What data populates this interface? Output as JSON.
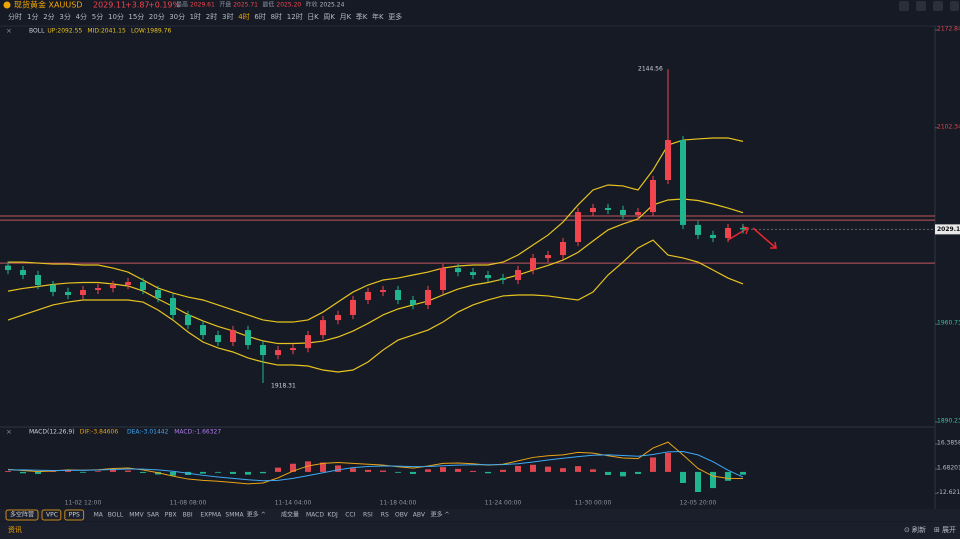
{
  "header": {
    "symbol": "现货黄金 XAUUSD",
    "price": "2029.11",
    "change": "+3.87",
    "change_pct": "+0.19%",
    "stats": [
      {
        "label": "最高",
        "value": "2029.61"
      },
      {
        "label": "开盘",
        "value": "2025.71"
      },
      {
        "label": "最低",
        "value": "2025.20"
      },
      {
        "label": "昨收",
        "value": "2025.24"
      }
    ]
  },
  "toolbar": {
    "timeframes": [
      "分时",
      "1分",
      "2分",
      "3分",
      "4分",
      "5分",
      "10分",
      "15分",
      "20分",
      "30分",
      "1时",
      "2时",
      "3时",
      "4时",
      "6时",
      "8时",
      "12时",
      "日K",
      "周K",
      "月K",
      "季K",
      "年K",
      "更多"
    ],
    "active": "4时"
  },
  "chart_data": [
    {
      "type": "candlestick",
      "indicator": "BOLL",
      "legend_texts": [
        "UP:2092.55",
        "MID:2041.15",
        "LOW:1989.76"
      ],
      "categories": [
        null,
        null,
        null,
        null,
        null,
        "11-02 12:00",
        null,
        null,
        null,
        null,
        null,
        null,
        "11-08 08:00",
        null,
        null,
        null,
        null,
        null,
        null,
        "11-14 04:00",
        null,
        null,
        null,
        null,
        null,
        null,
        "11-18 04:00",
        null,
        null,
        null,
        null,
        null,
        null,
        "11-24 00:00",
        null,
        null,
        null,
        null,
        null,
        "11-30 00:00",
        null,
        null,
        null,
        null,
        null,
        null,
        "12-05 20:00",
        null,
        null,
        null
      ],
      "open": [
        2003,
        1999.8,
        1996.2,
        1989,
        1984,
        1981.8,
        1985.4,
        1986.8,
        1989,
        1991.1,
        1985.4,
        1979.6,
        1967.4,
        1960.1,
        1952.9,
        1947.9,
        1956.5,
        1945.7,
        1938.5,
        1942.1,
        1943.5,
        1952.9,
        1963.7,
        1967.4,
        1978.2,
        1984,
        1985.4,
        1978.2,
        1974.6,
        1985.4,
        2001.2,
        1998.3,
        1996.2,
        1994,
        1992.6,
        1999.8,
        2008.4,
        2010.6,
        2020,
        2041.6,
        2044.5,
        2043.1,
        2039.5,
        2041.6,
        2064.7,
        2093.5,
        2032.3,
        2025.1,
        2022.9,
        2030.1
      ],
      "high": [
        2006,
        2002.8,
        1999.2,
        1992,
        1987,
        1988.4,
        1989.8,
        1992,
        1994.1,
        1994.1,
        1988.4,
        1982.6,
        1970.4,
        1963.1,
        1955.9,
        1959.5,
        1959.5,
        1948.7,
        1945.1,
        1946.5,
        1955.9,
        1966.7,
        1970.4,
        1981.2,
        1987,
        1988.4,
        1988.4,
        1981.2,
        1988.4,
        2004.2,
        2004.2,
        2001.3,
        1999.2,
        1997,
        2002.8,
        2011.4,
        2013.6,
        2023,
        2044.6,
        2047.5,
        2047.5,
        2046.1,
        2044.6,
        2067.7,
        2144.56,
        2096.5,
        2035.3,
        2028.1,
        2033.1,
        2033.1
      ],
      "low": [
        1996.8,
        1993.2,
        1986,
        1981,
        1978.8,
        1978.8,
        1982.4,
        1983.8,
        1986,
        1982.4,
        1976.6,
        1964.4,
        1957.1,
        1949.9,
        1944.9,
        1944.9,
        1942.7,
        1918.31,
        1935.5,
        1939.1,
        1940.5,
        1949.9,
        1960.7,
        1964.4,
        1975.2,
        1981,
        1975.2,
        1971.6,
        1971.6,
        1982.4,
        1995.3,
        1993.2,
        1991,
        1989.6,
        1989.6,
        1996.8,
        2005.4,
        2007.6,
        2017,
        2038.6,
        2040.1,
        2036.5,
        2036.5,
        2038.6,
        2061.7,
        2029.3,
        2022.1,
        2019.9,
        2019.9,
        2026.1
      ],
      "close": [
        1999.8,
        1996.2,
        1989,
        1984,
        1981.8,
        1985.4,
        1986.8,
        1989,
        1991.1,
        1985.4,
        1979.6,
        1967.4,
        1960.1,
        1952.9,
        1947.9,
        1956.5,
        1945.7,
        1938.5,
        1942.1,
        1943.5,
        1952.9,
        1963.7,
        1967.4,
        1978.2,
        1984,
        1985.4,
        1978.2,
        1974.6,
        1985.4,
        2001.2,
        1998.3,
        1996.2,
        1994,
        1992.6,
        1999.8,
        2008.4,
        2010.6,
        2020,
        2041.6,
        2044.5,
        2043.1,
        2039.5,
        2041.6,
        2064.7,
        2093.5,
        2032.3,
        2025.1,
        2022.9,
        2030.1,
        2029.11
      ],
      "up_color": "#f0454f",
      "down_color": "#1fb58f",
      "overlays": [
        {
          "color": "#e8c320",
          "values": [
            2005.5,
            2005.5,
            2004.8,
            2004.1,
            2004.1,
            2003.4,
            2003.4,
            2001.2,
            1998.3,
            1992.6,
            1986.8,
            1983.2,
            1980.3,
            1978.2,
            1974.6,
            1971,
            1967.4,
            1963.8,
            1962.3,
            1962.3,
            1963.8,
            1969.5,
            1976.7,
            1983.9,
            1989,
            1992.6,
            1994,
            1996.2,
            1998.3,
            2001.2,
            2002.7,
            2003.4,
            2003.4,
            2005.5,
            2010.6,
            2017.8,
            2025,
            2034.4,
            2046.7,
            2057.5,
            2061.1,
            2060.4,
            2057.5,
            2071.9,
            2089.9,
            2093.5,
            2094.3,
            2095,
            2095,
            2092.55
          ]
        },
        {
          "color": "#e8c320",
          "values": [
            1984.6,
            1986.5,
            1987.9,
            1989.4,
            1990.4,
            1990.8,
            1990.8,
            1989.7,
            1988.3,
            1984.7,
            1978.9,
            1973.5,
            1967.7,
            1963.1,
            1959.1,
            1955.9,
            1951.9,
            1948.7,
            1946.8,
            1946.8,
            1947.2,
            1948.6,
            1951.5,
            1955.8,
            1961.3,
            1967.4,
            1971.7,
            1974.6,
            1977.4,
            1981.8,
            1986.1,
            1989,
            1990.8,
            1993.3,
            1996.2,
            1999.8,
            2003.1,
            2007,
            2012.5,
            2020.7,
            2028.7,
            2033,
            2036.6,
            2046.7,
            2050.3,
            2051,
            2049.9,
            2047.4,
            2044.5,
            2041.15
          ]
        },
        {
          "color": "#e8c320",
          "values": [
            1963.7,
            1967.4,
            1971,
            1974.6,
            1976.7,
            1978.2,
            1978.2,
            1978.2,
            1978.2,
            1976.7,
            1971,
            1963.7,
            1955.1,
            1947.9,
            1943.6,
            1940.7,
            1936.4,
            1933.5,
            1931.3,
            1931.3,
            1930.6,
            1927.7,
            1926.3,
            1927.7,
            1933.5,
            1942.1,
            1949.3,
            1952.9,
            1956.5,
            1962.3,
            1969.5,
            1974.6,
            1978.2,
            1981.1,
            1981.8,
            1981.8,
            1981.1,
            1979.6,
            1978.2,
            1983.9,
            1996.2,
            2005.5,
            2015.7,
            2021.4,
            2010.6,
            2008.5,
            2005.5,
            1999.8,
            1994,
            1989.76
          ]
        }
      ],
      "hlines": [
        2038.7,
        2035.8,
        2004.8
      ],
      "hline_color": "#c0575c",
      "annotations": [
        "2144.56",
        "1918.31"
      ],
      "ylim": [
        1890.23,
        2172.84
      ],
      "yticks": [
        2172.84,
        2102.34,
        1960.73,
        1890.23
      ],
      "ytick_color": "#e0464f"
    },
    {
      "type": "macd",
      "indicator": "MACD(12,26,9)",
      "legend_texts": [
        "DIF:-3.84606",
        "DEA:-3.01442",
        "MACD:-1.66327"
      ],
      "legend_colors": [
        "#e8a317",
        "#3fa9f5",
        "#b07cf0"
      ],
      "values": [
        0.5,
        -0.8,
        -1.2,
        0.6,
        0.9,
        -0.5,
        0.4,
        1.2,
        0.8,
        -0.6,
        -1.5,
        -2.2,
        -1.8,
        -1,
        -0.5,
        -1.2,
        -1.6,
        -0.8,
        2.5,
        4.8,
        6.2,
        5.5,
        3.8,
        2.1,
        1.2,
        0.8,
        -0.5,
        -1.2,
        1.5,
        2.8,
        1.8,
        0.6,
        -0.8,
        1.2,
        3.5,
        4.2,
        3.1,
        2.2,
        3.4,
        1.5,
        -1.8,
        -2.6,
        -1.2,
        8.5,
        11.2,
        -6.5,
        -11.8,
        -9.5,
        -5.2,
        -1.66327
      ],
      "series": [
        {
          "color": "#e8a317",
          "values": [
            1.5,
            0.8,
            0.2,
            0.5,
            1.2,
            1,
            1.3,
            2,
            2.3,
            1.2,
            -0.5,
            -2.5,
            -4.2,
            -5,
            -5.5,
            -6.2,
            -7,
            -6.5,
            -3.5,
            0.5,
            3.5,
            5,
            5.5,
            5,
            4.5,
            4,
            3,
            2.2,
            3.5,
            5,
            5.2,
            4.8,
            4,
            4.5,
            6.5,
            8.5,
            9.5,
            10,
            11.5,
            11,
            9.5,
            8.2,
            7.8,
            14,
            17.5,
            10,
            2,
            -2.5,
            -3.8,
            -3.84606
          ]
        },
        {
          "color": "#3fa9f5",
          "values": [
            1.2,
            1.2,
            1,
            0.8,
            0.9,
            1,
            1.1,
            1.4,
            1.7,
            1.6,
            1.2,
            0.4,
            -0.8,
            -2,
            -3,
            -3.8,
            -4.6,
            -5.2,
            -5,
            -3.8,
            -2.2,
            -0.5,
            1.2,
            2.5,
            3.2,
            3.5,
            3.4,
            3.1,
            3.2,
            3.6,
            4,
            4.2,
            4.2,
            4.3,
            4.8,
            5.8,
            7,
            8,
            9,
            9.8,
            10,
            9.6,
            9.2,
            10.2,
            11.8,
            12,
            10,
            6,
            1,
            -3.01442
          ]
        }
      ],
      "up_color": "#e0464f",
      "down_color": "#1fb58f",
      "ylim": [
        -16.5,
        20.5
      ],
      "yticks": [
        16.38585,
        1.68201,
        {
          "value": -12.6218,
          "label": "-12.62180"
        }
      ]
    }
  ],
  "bottom_bar": {
    "groups": [
      "多空阵营",
      "VPC",
      "PPS"
    ],
    "main": [
      "MA",
      "BOLL",
      "MMV",
      "SAR",
      "PBX",
      "BBI",
      "EXPMA",
      "SMMA",
      "更多 ^"
    ],
    "sub": [
      "成交量",
      "MACD",
      "KDJ",
      "CCI",
      "RSI",
      "RS",
      "OBV",
      "ABV",
      "更多 ^"
    ]
  },
  "footer": {
    "news": "资讯",
    "refresh": "刷新",
    "expand": "展开"
  }
}
